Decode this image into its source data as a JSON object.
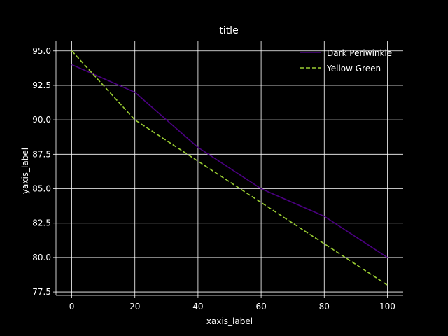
{
  "chart_data": {
    "type": "line",
    "title": "title",
    "xlabel": "xaxis_label",
    "ylabel": "yaxis_label",
    "xlim": [
      -5,
      105
    ],
    "ylim": [
      77.25,
      95.75
    ],
    "x_ticks": [
      0,
      20,
      40,
      60,
      80,
      100
    ],
    "y_ticks": [
      77.5,
      80.0,
      82.5,
      85.0,
      87.5,
      90.0,
      92.5,
      95.0
    ],
    "x_tick_labels": [
      "0",
      "20",
      "40",
      "60",
      "80",
      "100"
    ],
    "y_tick_labels": [
      "77.5",
      "80.0",
      "82.5",
      "85.0",
      "87.5",
      "90.0",
      "92.5",
      "95.0"
    ],
    "grid": true,
    "legend_position": "top-right",
    "x": [
      0,
      20,
      40,
      60,
      80,
      100
    ],
    "series": [
      {
        "name": "Dark Periwinkle",
        "values": [
          94,
          92,
          88,
          85,
          83,
          80
        ],
        "color": "#4b0082",
        "style": "solid"
      },
      {
        "name": "Yellow Green",
        "values": [
          95,
          90,
          87,
          84,
          81,
          78
        ],
        "color": "#9acd32",
        "style": "dashed"
      }
    ]
  }
}
